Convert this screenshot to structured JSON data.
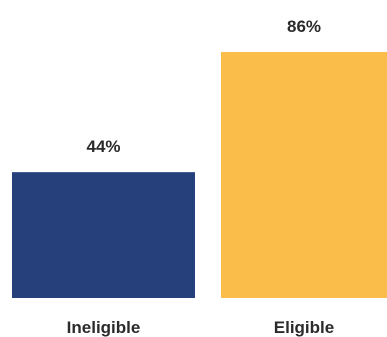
{
  "chart_data": {
    "type": "bar",
    "categories": [
      "Ineligible",
      "Eligible"
    ],
    "values": [
      44,
      86
    ],
    "value_labels": [
      "44%",
      "86%"
    ],
    "colors": [
      "#26407c",
      "#fbbd4a"
    ],
    "title": "",
    "xlabel": "",
    "ylabel": "",
    "ylim": [
      0,
      100
    ],
    "grid": false,
    "legend": "none"
  }
}
